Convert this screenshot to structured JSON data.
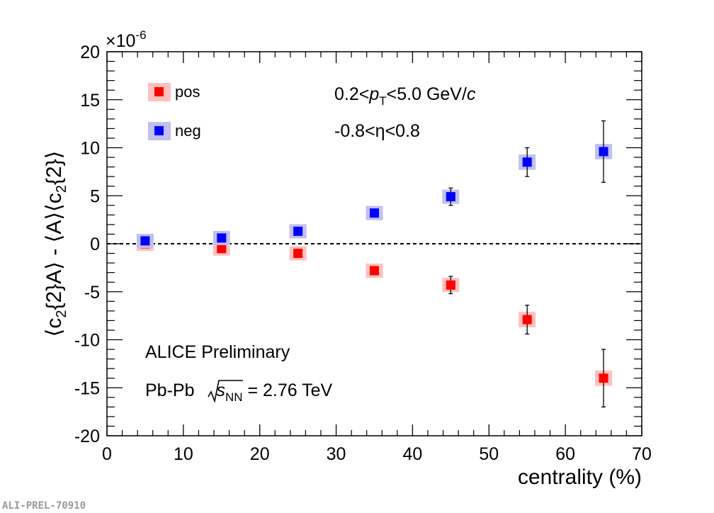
{
  "chart_data": {
    "type": "scatter",
    "x_label_plain": "centrality (%)",
    "y_label_plain": "⟨c2{2}A⟩ - ⟨A⟩⟨c2{2}⟩",
    "y_multiplier": "×10",
    "y_multiplier_exp": "-6",
    "xlim": [
      0,
      70
    ],
    "ylim": [
      -20,
      20
    ],
    "x_ticks": [
      "0",
      "10",
      "20",
      "30",
      "40",
      "50",
      "60",
      "70"
    ],
    "y_ticks": [
      "-20",
      "-15",
      "-10",
      "-5",
      "0",
      "5",
      "10",
      "15",
      "20"
    ],
    "reference_line": {
      "y": 0,
      "style": "dashed"
    },
    "series": [
      {
        "name": "pos",
        "color": "#ff0000",
        "syst_color": "#ffc0c0",
        "x": [
          5,
          15,
          25,
          35,
          45,
          55,
          65
        ],
        "y": [
          0.0,
          -0.5,
          -1.0,
          -2.8,
          -4.3,
          -7.9,
          -14.0
        ],
        "stat_err": [
          0.3,
          0.3,
          0.3,
          0.4,
          0.9,
          1.5,
          3.0
        ],
        "syst_err": [
          0.4,
          0.4,
          0.4,
          0.6,
          0.7,
          0.8,
          0.8
        ]
      },
      {
        "name": "neg",
        "color": "#0000ff",
        "syst_color": "#c0c0f2",
        "x": [
          5,
          15,
          25,
          35,
          45,
          55,
          65
        ],
        "y": [
          0.3,
          0.6,
          1.3,
          3.2,
          4.9,
          8.5,
          9.6
        ],
        "stat_err": [
          0.3,
          0.3,
          0.3,
          0.4,
          0.9,
          1.5,
          3.2
        ],
        "syst_err": [
          0.4,
          0.4,
          0.5,
          0.6,
          0.7,
          0.8,
          0.8
        ]
      }
    ],
    "annotations": {
      "pt_range": {
        "pre": "0.2<",
        "var": "p",
        "sub": "T",
        "post": "<5.0 GeV/",
        "unit_italic": "c"
      },
      "eta_range": "-0.8<η<0.8",
      "experiment": "ALICE Preliminary",
      "system": {
        "pre": "Pb-Pb ",
        "var": "s",
        "sub": "NN",
        "post": " = 2.76 TeV"
      }
    },
    "figure_id": "ALI-PREL-70910"
  }
}
